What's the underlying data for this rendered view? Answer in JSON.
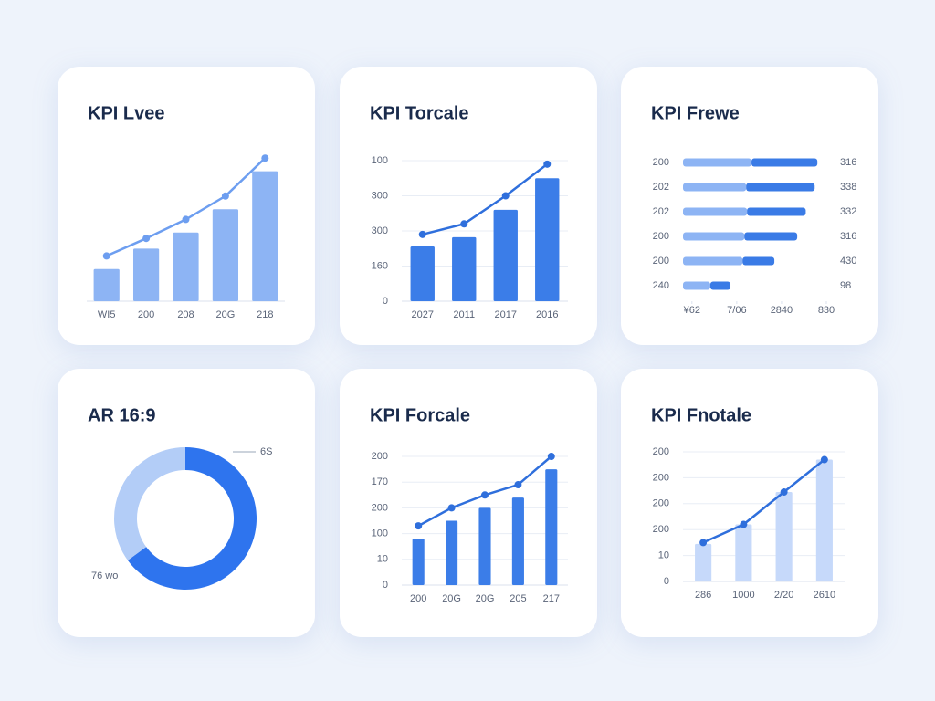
{
  "chart_data": [
    {
      "type": "bar",
      "title": "KPI Lvee",
      "categories": [
        "WI5",
        "200",
        "208",
        "20G",
        "218"
      ],
      "ylim": [
        0,
        100
      ],
      "series": [
        {
          "type": "bar",
          "color": "#8db4f4",
          "values": [
            22,
            36,
            47,
            63,
            89
          ]
        },
        {
          "type": "line",
          "color": "#6d9ef0",
          "values": [
            31,
            43,
            56,
            72,
            98
          ]
        }
      ]
    },
    {
      "type": "bar",
      "title": "KPI Torcale",
      "categories": [
        "2027",
        "2011",
        "2017",
        "2016"
      ],
      "ylim": [
        0,
        40
      ],
      "yticks": [
        {
          "value": 40,
          "label": "100"
        },
        {
          "value": 30,
          "label": "300"
        },
        {
          "value": 20,
          "label": "300"
        },
        {
          "value": 10,
          "label": "160"
        },
        0
      ],
      "grid": true,
      "series": [
        {
          "type": "bar",
          "color": "#3b7de8",
          "values": [
            15.6,
            18.2,
            26,
            35
          ]
        },
        {
          "type": "line",
          "color": "#2f6fdc",
          "values": [
            19,
            22,
            30,
            39
          ]
        }
      ]
    },
    {
      "type": "hbar",
      "title": "KPI Frewe",
      "categories": [
        "200",
        "202",
        "202",
        "200",
        "200",
        "240"
      ],
      "annotations": [
        "316",
        "338",
        "332",
        "316",
        "430",
        "98"
      ],
      "xlim": [
        0,
        32
      ],
      "xticks": [
        {
          "value": 2,
          "label": "¥62"
        },
        {
          "value": 12,
          "label": "7/06"
        },
        {
          "value": 22,
          "label": "2840"
        },
        {
          "value": 32,
          "label": "830"
        }
      ],
      "stacked": true,
      "series": [
        {
          "color": "#8db4f4",
          "values": [
            15.3,
            14.1,
            14.3,
            13.7,
            13.3,
            6.1
          ]
        },
        {
          "color": "#3a7be6",
          "values": [
            14.7,
            15.3,
            13.1,
            11.8,
            7.1,
            4.5
          ]
        }
      ]
    },
    {
      "type": "donut",
      "title": "AR 16:9",
      "labels": [
        "6S",
        "76 wo"
      ],
      "values": [
        65,
        35
      ],
      "colors": [
        "#2e74ee",
        "#b3cdf7"
      ]
    },
    {
      "type": "bar",
      "title": "KPI Forcale",
      "categories": [
        "200",
        "20G",
        "20G",
        "205",
        "217"
      ],
      "ylim": [
        0,
        50
      ],
      "yticks": [
        {
          "value": 50,
          "label": "200"
        },
        {
          "value": 40,
          "label": "170"
        },
        {
          "value": 30,
          "label": "200"
        },
        {
          "value": 20,
          "label": "100"
        },
        10,
        0
      ],
      "grid": true,
      "series": [
        {
          "type": "bar",
          "color": "#3b7de8",
          "values": [
            18,
            25,
            30,
            34,
            45
          ]
        },
        {
          "type": "line",
          "color": "#2f6fdc",
          "values": [
            23,
            30,
            35,
            39,
            50
          ]
        }
      ]
    },
    {
      "type": "bar",
      "title": "KPI Fnotale",
      "categories": [
        "286",
        "1000",
        "2/20",
        "2610"
      ],
      "ylim": [
        0,
        50
      ],
      "yticks": [
        {
          "value": 50,
          "label": "200"
        },
        {
          "value": 40,
          "label": "200"
        },
        {
          "value": 30,
          "label": "200"
        },
        {
          "value": 20,
          "label": "200"
        },
        10,
        0
      ],
      "grid": true,
      "series": [
        {
          "type": "bar",
          "color": "#c6d9fa",
          "values": [
            14.5,
            22,
            34.5,
            47
          ]
        },
        {
          "type": "line",
          "color": "#2f6fdc",
          "values": [
            15,
            22,
            34.5,
            47
          ]
        }
      ]
    }
  ]
}
